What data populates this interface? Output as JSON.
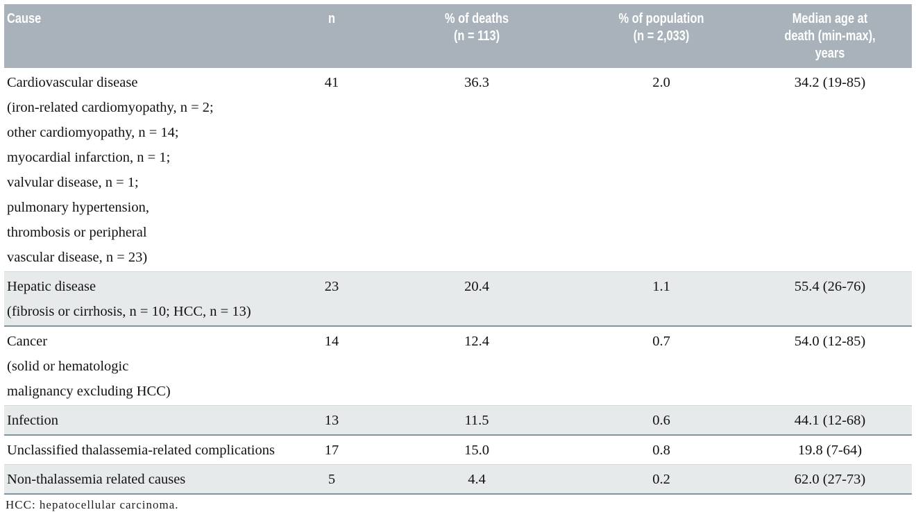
{
  "colors": {
    "header_bg": "#a9b2ba",
    "header_text": "#ffffff",
    "row_shade": "#e7eaeb",
    "divider": "#8093a0",
    "light_line": "#d4d9db",
    "body_text": "#121212"
  },
  "table": {
    "header": [
      {
        "name": "col-cause",
        "lines": [
          "Cause"
        ]
      },
      {
        "name": "col-n",
        "lines": [
          "n"
        ]
      },
      {
        "name": "col-pct-deaths",
        "lines": [
          "% of deaths",
          "(n = 113)"
        ]
      },
      {
        "name": "col-pct-population",
        "lines": [
          "% of population",
          "(n = 2,033)"
        ]
      },
      {
        "name": "col-median-age",
        "lines": [
          "Median age at",
          "death (min-max),",
          "years"
        ]
      }
    ],
    "rows": [
      {
        "cause_lines": [
          "Cardiovascular disease",
          "(iron-related cardiomyopathy, n = 2;",
          "other cardiomyopathy, n = 14;",
          "myocardial infarction, n = 1;",
          "valvular disease, n = 1;",
          "pulmonary hypertension,",
          "thrombosis or peripheral",
          "vascular disease, n = 23)"
        ],
        "n": "41",
        "pct_deaths": "36.3",
        "pct_population": "2.0",
        "median_age": "34.2 (19-85)",
        "shaded": false
      },
      {
        "cause_lines": [
          "Hepatic disease",
          "(fibrosis or cirrhosis, n = 10; HCC, n = 13)"
        ],
        "n": "23",
        "pct_deaths": "20.4",
        "pct_population": "1.1",
        "median_age": "55.4 (26-76)",
        "shaded": true
      },
      {
        "cause_lines": [
          "Cancer",
          "(solid or hematologic",
          "malignancy excluding HCC)"
        ],
        "n": "14",
        "pct_deaths": "12.4",
        "pct_population": "0.7",
        "median_age": "54.0 (12-85)",
        "shaded": false
      },
      {
        "cause_lines": [
          "Infection"
        ],
        "n": "13",
        "pct_deaths": "11.5",
        "pct_population": "0.6",
        "median_age": "44.1 (12-68)",
        "shaded": true
      },
      {
        "cause_lines": [
          "Unclassified thalassemia-related complications"
        ],
        "n": "17",
        "pct_deaths": "15.0",
        "pct_population": "0.8",
        "median_age": "19.8 (7-64)",
        "shaded": false
      },
      {
        "cause_lines": [
          "Non-thalassemia related causes"
        ],
        "n": "5",
        "pct_deaths": "4.4",
        "pct_population": "0.2",
        "median_age": "62.0 (27-73)",
        "shaded": true
      }
    ],
    "footnote": "HCC: hepatocellular carcinoma."
  }
}
